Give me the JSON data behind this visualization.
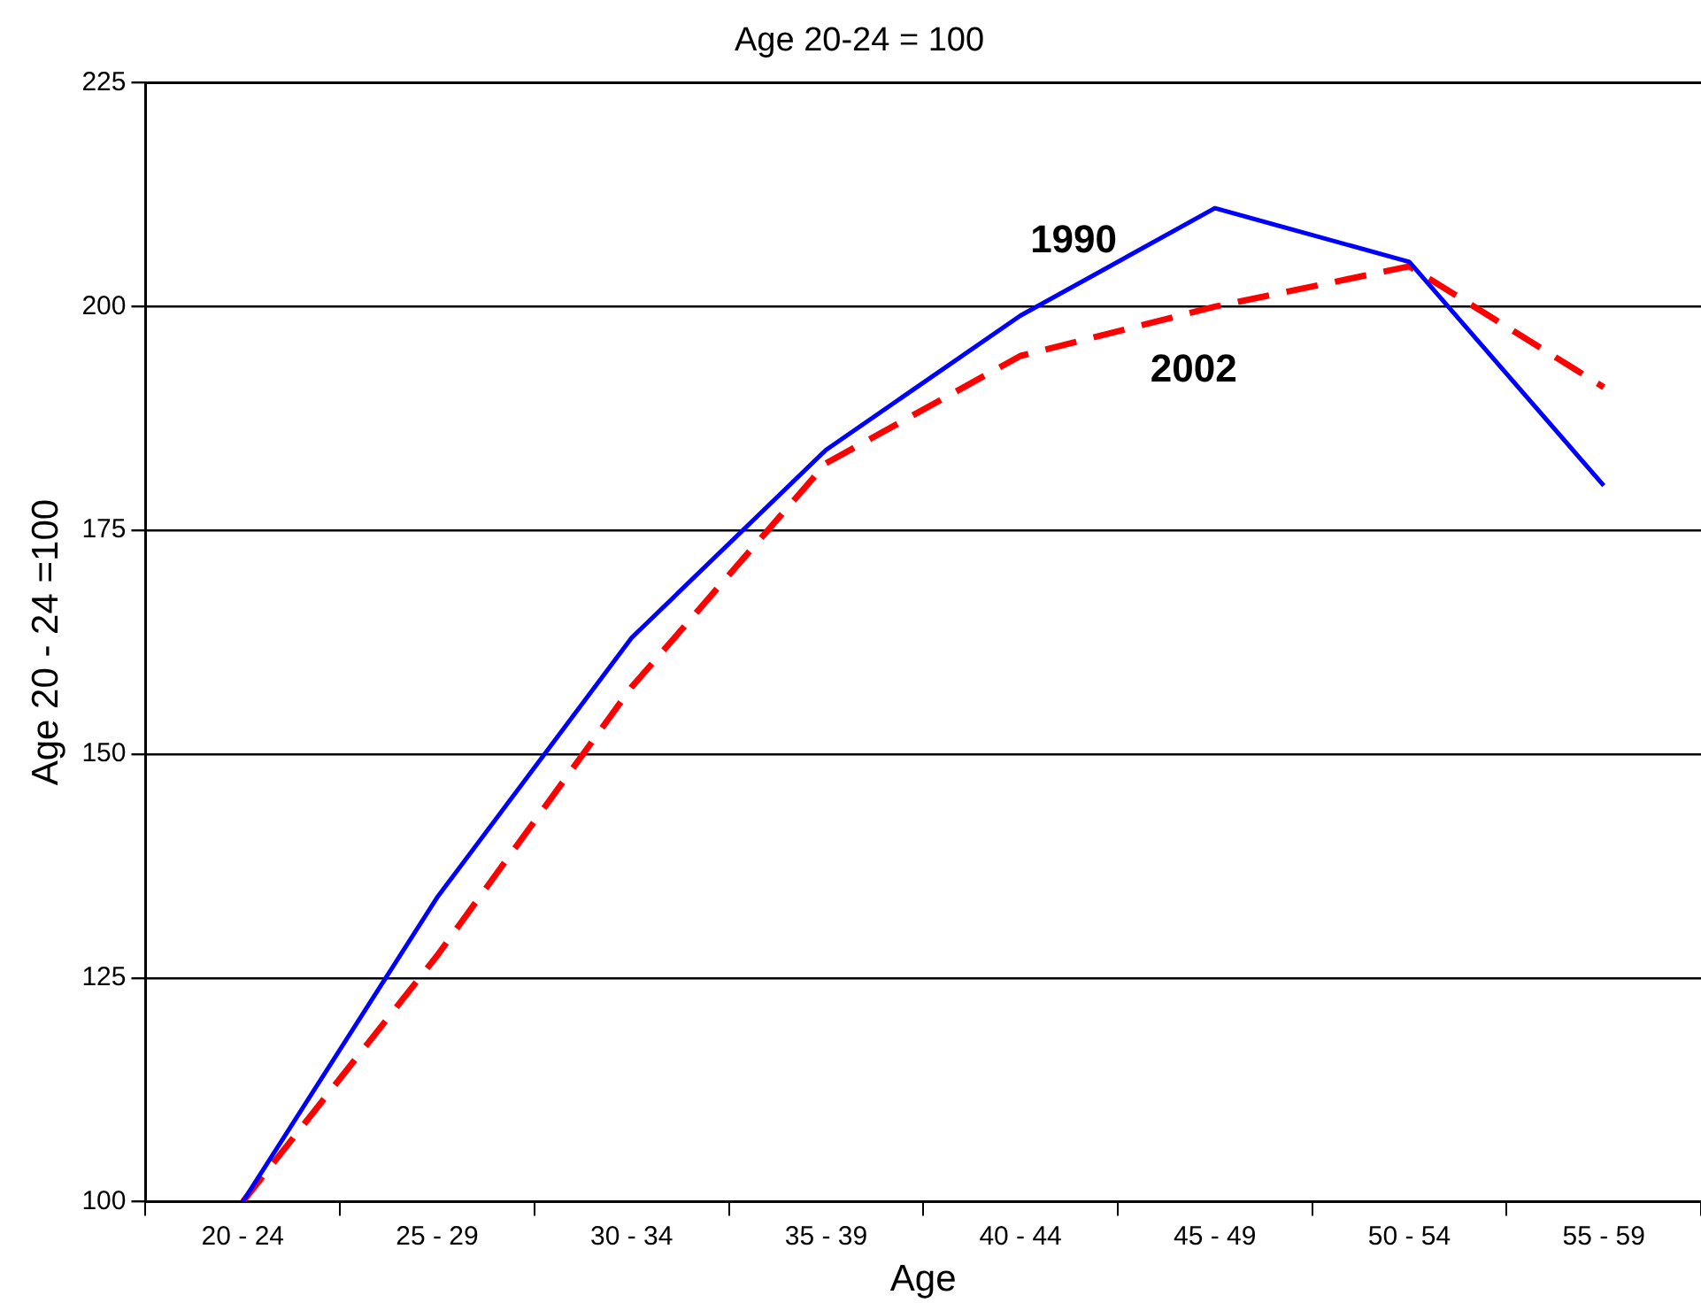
{
  "chart_data": {
    "type": "line",
    "title": "Age 20-24 = 100",
    "xlabel": "Age",
    "ylabel": "Age 20 - 24 =100",
    "categories": [
      "20 - 24",
      "25 - 29",
      "30 - 34",
      "35 - 39",
      "40 - 44",
      "45 - 49",
      "50 - 54",
      "55 - 59"
    ],
    "series": [
      {
        "name": "1990",
        "color": "#0000ff",
        "line_style": "solid",
        "values": [
          100,
          134,
          163,
          184,
          199,
          211,
          205,
          180
        ]
      },
      {
        "name": "2002",
        "color": "#ff0000",
        "line_style": "dashed",
        "values": [
          100,
          127.5,
          157.5,
          182.5,
          194.5,
          200,
          204.5,
          191
        ]
      }
    ],
    "ylim": [
      100,
      225
    ],
    "yticks": [
      100,
      125,
      150,
      175,
      200,
      225
    ],
    "grid": "y",
    "legend": false,
    "marker": "none"
  }
}
